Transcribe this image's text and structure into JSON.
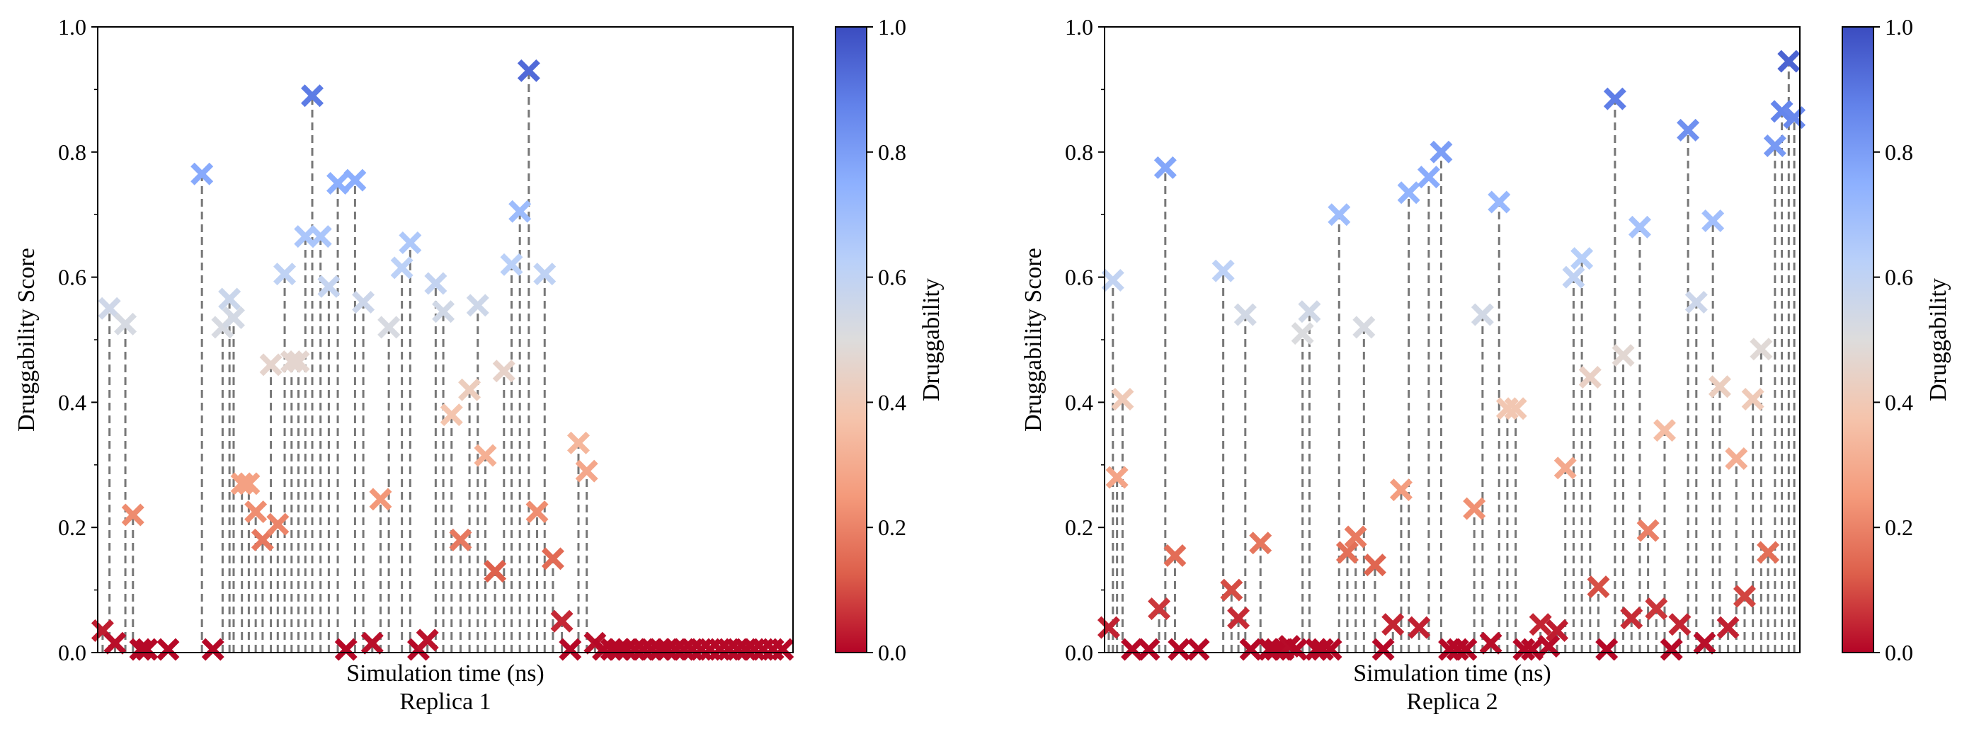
{
  "chart_data": [
    {
      "type": "scatter",
      "subtitle": "Replica 1",
      "xlabel": "Simulation time (ns)",
      "ylabel": "Druggability Score",
      "ylim": [
        0,
        1.0
      ],
      "xlim": [
        0,
        1
      ],
      "xticks_shown": false,
      "yticks": [
        "0.0",
        "0.2",
        "0.4",
        "0.6",
        "0.8",
        "1.0"
      ],
      "marker": "X",
      "drop_lines": true,
      "colorbar": {
        "label": "Druggability",
        "range": [
          0,
          1.0
        ],
        "ticks": [
          "0.0",
          "0.2",
          "0.4",
          "0.6",
          "0.8",
          "1.0"
        ],
        "colormap": "coolwarm_r"
      },
      "x": [
        0.003,
        0.013,
        0.021,
        0.036,
        0.047,
        0.058,
        0.067,
        0.098,
        0.147,
        0.163,
        0.177,
        0.187,
        0.193,
        0.205,
        0.215,
        0.225,
        0.235,
        0.247,
        0.257,
        0.267,
        0.277,
        0.287,
        0.297,
        0.307,
        0.319,
        0.331,
        0.344,
        0.356,
        0.369,
        0.381,
        0.394,
        0.406,
        0.418,
        0.437,
        0.449,
        0.461,
        0.474,
        0.486,
        0.497,
        0.509,
        0.522,
        0.535,
        0.547,
        0.558,
        0.572,
        0.585,
        0.596,
        0.608,
        0.621,
        0.633,
        0.644,
        0.656,
        0.669,
        0.681,
        0.693,
        0.705,
        0.717,
        0.729,
        0.741,
        0.752,
        0.763,
        0.775,
        0.787,
        0.799,
        0.811,
        0.822,
        0.834,
        0.846,
        0.858,
        0.871,
        0.884,
        0.898,
        0.911,
        0.924,
        0.936,
        0.948,
        0.961,
        0.975,
        0.989
      ],
      "y": [
        0.035,
        0.55,
        0.015,
        0.525,
        0.22,
        0.005,
        0.005,
        0.005,
        0.765,
        0.005,
        0.52,
        0.565,
        0.535,
        0.27,
        0.27,
        0.225,
        0.18,
        0.46,
        0.205,
        0.605,
        0.465,
        0.465,
        0.665,
        0.89,
        0.665,
        0.585,
        0.75,
        0.005,
        0.755,
        0.56,
        0.015,
        0.245,
        0.52,
        0.615,
        0.655,
        0.005,
        0.02,
        0.59,
        0.545,
        0.38,
        0.18,
        0.42,
        0.555,
        0.315,
        0.13,
        0.45,
        0.62,
        0.705,
        0.93,
        0.225,
        0.605,
        0.15,
        0.05,
        0.005,
        0.335,
        0.29,
        0.015,
        0.005,
        0.005,
        0.005,
        0.005,
        0.005,
        0.005,
        0.005,
        0.005,
        0.005,
        0.005,
        0.005,
        0.005,
        0.005,
        0.005,
        0.005,
        0.005,
        0.005,
        0.005,
        0.005,
        0.005,
        0.005,
        0.005
      ]
    },
    {
      "type": "scatter",
      "subtitle": "Replica 2",
      "xlabel": "Simulation time (ns)",
      "ylabel": "Druggability Score",
      "ylim": [
        0,
        1.0
      ],
      "xlim": [
        0,
        1
      ],
      "xticks_shown": false,
      "yticks": [
        "0.0",
        "0.2",
        "0.4",
        "0.6",
        "0.8",
        "1.0"
      ],
      "marker": "X",
      "drop_lines": true,
      "colorbar": {
        "label": "Druggability",
        "range": [
          0,
          1.0
        ],
        "ticks": [
          "0.0",
          "0.2",
          "0.4",
          "0.6",
          "0.8",
          "1.0"
        ],
        "colormap": "coolwarm_r"
      },
      "x": [
        0.002,
        0.008,
        0.014,
        0.022,
        0.036,
        0.06,
        0.075,
        0.084,
        0.098,
        0.104,
        0.132,
        0.168,
        0.18,
        0.19,
        0.2,
        0.208,
        0.222,
        0.235,
        0.244,
        0.255,
        0.264,
        0.274,
        0.283,
        0.293,
        0.303,
        0.312,
        0.324,
        0.336,
        0.348,
        0.36,
        0.372,
        0.388,
        0.4,
        0.414,
        0.426,
        0.437,
        0.452,
        0.466,
        0.484,
        0.496,
        0.508,
        0.52,
        0.532,
        0.544,
        0.556,
        0.568,
        0.58,
        0.592,
        0.604,
        0.616,
        0.628,
        0.64,
        0.652,
        0.664,
        0.676,
        0.688,
        0.7,
        0.712,
        0.724,
        0.736,
        0.748,
        0.76,
        0.772,
        0.784,
        0.796,
        0.808,
        0.818,
        0.83,
        0.842,
        0.854,
        0.866,
        0.878,
        0.888,
        0.9,
        0.912,
        0.924,
        0.936,
        0.948,
        0.958,
        0.968,
        0.978,
        0.988,
        0.996
      ],
      "y": [
        0.04,
        0.595,
        0.28,
        0.405,
        0.005,
        0.005,
        0.07,
        0.775,
        0.155,
        0.005,
        0.005,
        0.61,
        0.1,
        0.055,
        0.54,
        0.005,
        0.175,
        0.005,
        0.005,
        0.005,
        0.01,
        0.005,
        0.51,
        0.545,
        0.005,
        0.005,
        0.005,
        0.7,
        0.16,
        0.185,
        0.52,
        0.14,
        0.005,
        0.045,
        0.26,
        0.735,
        0.04,
        0.76,
        0.8,
        0.005,
        0.005,
        0.005,
        0.23,
        0.54,
        0.015,
        0.72,
        0.39,
        0.39,
        0.005,
        0.005,
        0.045,
        0.01,
        0.035,
        0.295,
        0.6,
        0.63,
        0.44,
        0.105,
        0.005,
        0.885,
        0.475,
        0.055,
        0.68,
        0.195,
        0.07,
        0.355,
        0.005,
        0.045,
        0.835,
        0.56,
        0.015,
        0.69,
        0.425,
        0.04,
        0.31,
        0.09,
        0.405,
        0.485,
        0.16,
        0.81,
        0.865,
        0.945,
        0.855
      ]
    }
  ]
}
